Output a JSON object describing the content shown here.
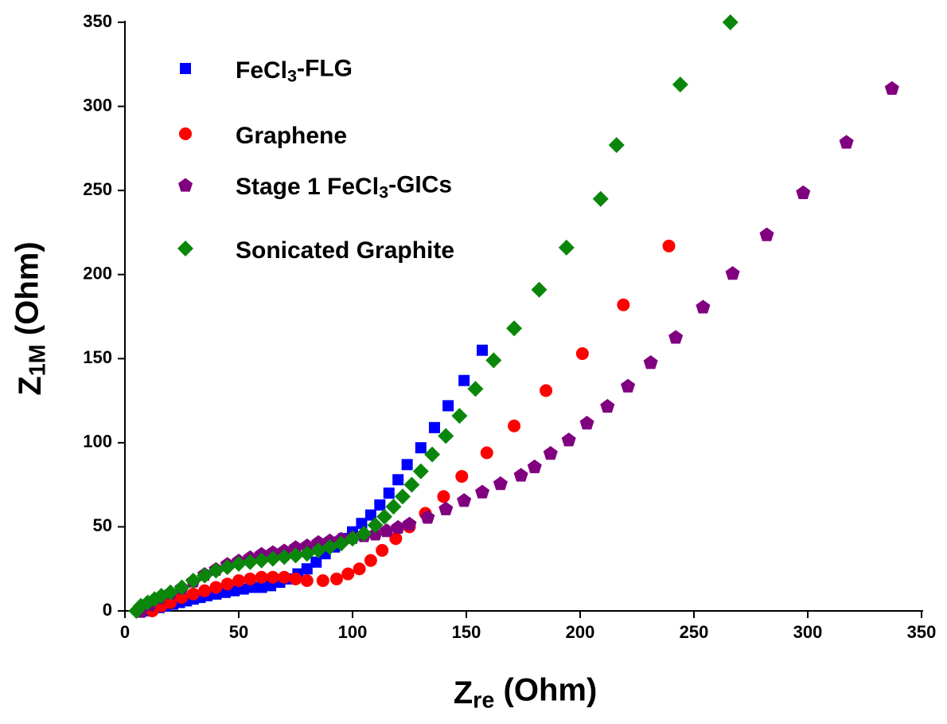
{
  "chart_data": {
    "type": "scatter",
    "x_label": "Zre (Ohm)",
    "y_label": "Z1M (Ohm)",
    "xlim": [
      0,
      350
    ],
    "ylim": [
      0,
      350
    ],
    "xticks": [
      0,
      50,
      100,
      150,
      200,
      250,
      300,
      350
    ],
    "yticks": [
      0,
      50,
      100,
      150,
      200,
      250,
      300,
      350
    ],
    "legend": "upper-left",
    "series": [
      {
        "name": "FeCl3-FLG",
        "color": "#0000ff",
        "marker": "square",
        "x": [
          10,
          12,
          15,
          18,
          21,
          24,
          27,
          30,
          33,
          36,
          40,
          44,
          48,
          52,
          56,
          60,
          64,
          68,
          72,
          76,
          80,
          84,
          88,
          92,
          96,
          100,
          104,
          108,
          112,
          116,
          120,
          124,
          130,
          136,
          142,
          149,
          157
        ],
        "values": [
          0,
          1,
          2,
          3,
          4,
          5,
          6,
          7,
          8,
          9,
          10,
          11,
          12,
          13,
          14,
          14,
          15,
          17,
          19,
          22,
          25,
          29,
          34,
          38,
          43,
          47,
          52,
          57,
          63,
          70,
          78,
          87,
          97,
          109,
          122,
          137,
          155
        ]
      },
      {
        "name": "Graphene",
        "color": "#ff0000",
        "marker": "circle",
        "x": [
          12,
          16,
          20,
          25,
          30,
          35,
          40,
          45,
          50,
          55,
          60,
          65,
          70,
          75,
          80,
          87,
          93,
          98,
          103,
          108,
          113,
          119,
          125,
          132,
          140,
          148,
          159,
          171,
          185,
          201,
          219,
          239
        ],
        "values": [
          0,
          3,
          5,
          8,
          10,
          12,
          14,
          16,
          18,
          19,
          20,
          20,
          20,
          19,
          18,
          18,
          19,
          22,
          25,
          30,
          36,
          43,
          50,
          58,
          68,
          80,
          94,
          110,
          131,
          153,
          182,
          217
        ]
      },
      {
        "name": "Stage 1 FeCl3-GICs",
        "color": "#800080",
        "marker": "pentagon",
        "x": [
          7,
          11,
          15,
          20,
          25,
          30,
          35,
          40,
          45,
          50,
          55,
          60,
          65,
          70,
          75,
          80,
          85,
          90,
          95,
          100,
          105,
          110,
          115,
          120,
          125,
          133,
          141,
          149,
          157,
          165,
          174,
          180,
          187,
          195,
          203,
          212,
          221,
          231,
          242,
          254,
          267,
          282,
          298,
          317,
          337
        ],
        "values": [
          0,
          4,
          8,
          11,
          14,
          18,
          22,
          25,
          28,
          30,
          32,
          34,
          35,
          36,
          38,
          39,
          41,
          42,
          43,
          44,
          45,
          46,
          48,
          50,
          52,
          56,
          61,
          66,
          71,
          76,
          81,
          86,
          94,
          102,
          112,
          122,
          134,
          148,
          163,
          181,
          201,
          224,
          249,
          279,
          311
        ]
      },
      {
        "name": "Sonicated Graphite",
        "color": "#0a870a",
        "marker": "diamond",
        "x": [
          5,
          7,
          10,
          13,
          16,
          20,
          25,
          30,
          35,
          40,
          45,
          50,
          55,
          60,
          65,
          70,
          75,
          80,
          85,
          90,
          95,
          100,
          105,
          110,
          114,
          118,
          122,
          126,
          130,
          135,
          141,
          147,
          154,
          162,
          171,
          182,
          194,
          209,
          216,
          244,
          266
        ],
        "values": [
          0,
          3,
          5,
          7,
          9,
          11,
          14,
          18,
          21,
          24,
          26,
          28,
          29,
          30,
          31,
          32,
          33,
          34,
          36,
          38,
          40,
          43,
          46,
          51,
          56,
          62,
          68,
          75,
          83,
          93,
          104,
          116,
          132,
          149,
          168,
          191,
          216,
          245,
          277,
          313,
          350
        ]
      }
    ]
  }
}
